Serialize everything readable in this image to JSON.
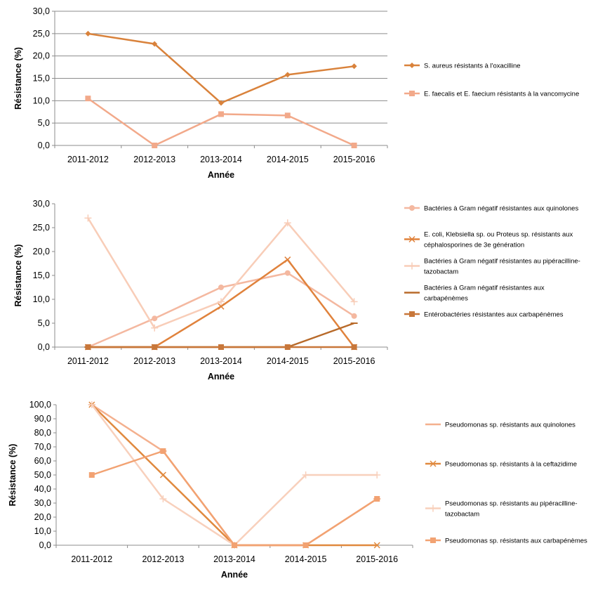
{
  "chart_data": [
    {
      "type": "line",
      "xlabel": "Année",
      "ylabel": "Résistance (%)",
      "ylim": [
        0,
        30
      ],
      "ytick_step": 5,
      "ytick_labels": [
        "0,0",
        "5,0",
        "10,0",
        "15,0",
        "20,0",
        "25,0",
        "30,0"
      ],
      "grid": true,
      "legend_position": "right",
      "categories": [
        "2011-2012",
        "2012-2013",
        "2013-2014",
        "2014-2015",
        "2015-2016"
      ],
      "series": [
        {
          "name": "S. aureus résistants à l'oxacilline",
          "values": [
            25.0,
            22.7,
            9.5,
            15.8,
            17.7
          ],
          "color": "#d9823b",
          "marker": "diamond"
        },
        {
          "name": "E. faecalis et E. faecium résistants à la vancomycine",
          "values": [
            10.5,
            0.0,
            7.0,
            6.7,
            0.0
          ],
          "color": "#f2a98a",
          "marker": "square"
        }
      ]
    },
    {
      "type": "line",
      "xlabel": "Année",
      "ylabel": "Résistance (%)",
      "ylim": [
        0,
        30
      ],
      "ytick_step": 5,
      "ytick_labels": [
        "0,0",
        "5,0",
        "10,0",
        "15,0",
        "20,0",
        "25,0",
        "30,0"
      ],
      "grid": false,
      "legend_position": "right",
      "categories": [
        "2011-2012",
        "2012-2013",
        "2013-2014",
        "2014-2015",
        "2015-2016"
      ],
      "series": [
        {
          "name": "Bactéries à Gram négatif résistantes aux quinolones",
          "legend_lines": [
            "Bactéries à Gram négatif résistantes aux quinolones"
          ],
          "values": [
            0.0,
            6.0,
            12.5,
            15.5,
            6.5
          ],
          "color": "#f4b8a0",
          "marker": "circle"
        },
        {
          "name": "E. coli, Klebsiella sp. ou Proteus sp. résistants aux céphalosporines de 3e génération",
          "legend_lines": [
            "E. coli, Klebsiella sp. ou Proteus sp. résistants aux",
            "céphalosporines de 3e génération"
          ],
          "values": [
            0.0,
            0.0,
            8.5,
            18.3,
            0.0
          ],
          "color": "#e0823c",
          "marker": "x"
        },
        {
          "name": "Bactéries à Gram négatif résistantes au pipéracilline-tazobactam",
          "legend_lines": [
            "Bactéries à Gram négatif résistantes au pipéracilline-",
            "tazobactam"
          ],
          "values": [
            27.0,
            4.0,
            9.5,
            26.0,
            9.5
          ],
          "color": "#f8cdb8",
          "marker": "plus"
        },
        {
          "name": "Bactéries à Gram négatif résistantes aux carbapénèmes",
          "legend_lines": [
            "Bactéries à Gram négatif résistantes aux",
            "carbapénèmes"
          ],
          "values": [
            0.0,
            0.0,
            0.0,
            0.0,
            5.0
          ],
          "color": "#b86a2a",
          "marker": "dash"
        },
        {
          "name": "Entérobactéries résistantes aux carbapénèmes",
          "legend_lines": [
            "Entérobactéries résistantes aux carbapénèmes"
          ],
          "values": [
            0.0,
            0.0,
            0.0,
            0.0,
            0.0
          ],
          "color": "#c8773a",
          "marker": "square"
        }
      ]
    },
    {
      "type": "line",
      "xlabel": "Année",
      "ylabel": "Résistance (%)",
      "ylim": [
        0,
        100
      ],
      "ytick_step": 10,
      "ytick_labels": [
        "0,0",
        "10,0",
        "20,0",
        "30,0",
        "40,0",
        "50,0",
        "60,0",
        "70,0",
        "80,0",
        "90,0",
        "100,0"
      ],
      "grid": false,
      "legend_position": "right",
      "categories": [
        "2011-2012",
        "2012-2013",
        "2013-2014",
        "2014-2015",
        "2015-2016"
      ],
      "series": [
        {
          "name": "Pseudomonas sp. résistants aux quinolones",
          "legend_lines": [
            "Pseudomonas sp. résistants aux quinolones"
          ],
          "values": [
            100.0,
            67.0,
            0.0,
            0.0,
            33.0
          ],
          "color": "#f4b08e",
          "marker": "dash"
        },
        {
          "name": "Pseudomonas sp. résistants à la ceftazidime",
          "legend_lines": [
            "Pseudomonas sp. résistants à la ceftazidime"
          ],
          "values": [
            100.0,
            50.0,
            0.0,
            0.0,
            0.0
          ],
          "color": "#e0893e",
          "marker": "x"
        },
        {
          "name": "Pseudomonas sp. résistants au pipéracilline-tazobactam",
          "legend_lines": [
            "Pseudomonas sp. résistants au pipéracilline-",
            "tazobactam"
          ],
          "values": [
            100.0,
            33.0,
            0.0,
            50.0,
            50.0
          ],
          "color": "#f8d0bc",
          "marker": "plus"
        },
        {
          "name": "Pseudomonas sp. résistants aux carbapénèmes",
          "legend_lines": [
            "Pseudomonas sp. résistants aux carbapénèmes"
          ],
          "values": [
            50.0,
            67.0,
            0.0,
            0.0,
            33.0
          ],
          "color": "#f2a272",
          "marker": "square"
        }
      ]
    }
  ]
}
